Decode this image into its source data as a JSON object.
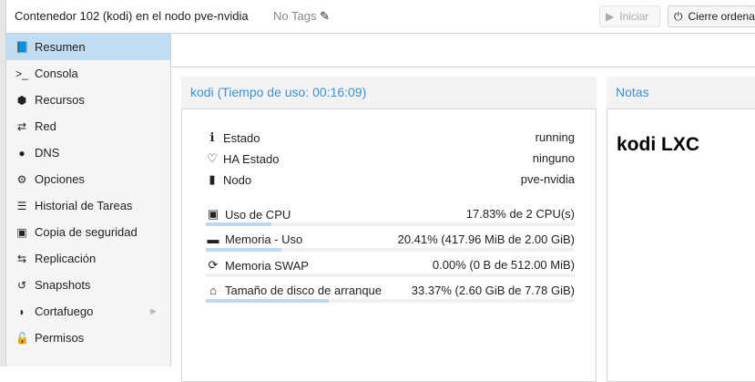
{
  "header": {
    "title": "Contenedor 102 (kodi) en el nodo pve-nvidia",
    "tags": "No Tags",
    "start_label": "Iniciar",
    "shutdown_label": "Cierre ordena"
  },
  "sidebar": {
    "items": [
      {
        "label": "Resumen",
        "icon": "book-icon",
        "glyph": "📘"
      },
      {
        "label": "Consola",
        "icon": "terminal-icon",
        "glyph": ">_"
      },
      {
        "label": "Recursos",
        "icon": "cube-icon",
        "glyph": "⬢"
      },
      {
        "label": "Red",
        "icon": "exchange-icon",
        "glyph": "⇄"
      },
      {
        "label": "DNS",
        "icon": "globe-icon",
        "glyph": "●"
      },
      {
        "label": "Opciones",
        "icon": "gear-icon",
        "glyph": "⚙"
      },
      {
        "label": "Historial de Tareas",
        "icon": "list-icon",
        "glyph": "☰"
      },
      {
        "label": "Copia de seguridad",
        "icon": "floppy-icon",
        "glyph": "▣"
      },
      {
        "label": "Replicación",
        "icon": "retweet-icon",
        "glyph": "⇆"
      },
      {
        "label": "Snapshots",
        "icon": "history-icon",
        "glyph": "↺"
      },
      {
        "label": "Cortafuego",
        "icon": "shield-icon",
        "glyph": "◗"
      },
      {
        "label": "Permisos",
        "icon": "unlock-icon",
        "glyph": "🔓"
      }
    ]
  },
  "status": {
    "title": "kodi (Tiempo de uso: 00:16:09)",
    "info": [
      {
        "label": "Estado",
        "value": "running",
        "glyph": "ℹ",
        "icon": "info-icon"
      },
      {
        "label": "HA Estado",
        "value": "ninguno",
        "glyph": "♡",
        "icon": "heartbeat-icon"
      },
      {
        "label": "Nodo",
        "value": "pve-nvidia",
        "glyph": "▮",
        "icon": "building-icon"
      }
    ],
    "usage": [
      {
        "label": "Uso de CPU",
        "value": "17.83% de 2 CPU(s)",
        "percent": 17.83,
        "glyph": "▣",
        "icon": "cpu-icon"
      },
      {
        "label": "Memoria - Uso",
        "value": "20.41% (417.96 MiB de 2.00 GiB)",
        "percent": 20.41,
        "glyph": "▬",
        "icon": "memory-icon"
      },
      {
        "label": "Memoria SWAP",
        "value": "0.00% (0 B de 512.00 MiB)",
        "percent": 0,
        "glyph": "⟳",
        "icon": "refresh-icon"
      },
      {
        "label": "Tamaño de disco de arranque",
        "value": "33.37% (2.60 GiB de 7.78 GiB)",
        "percent": 33.37,
        "glyph": "⌂",
        "icon": "hdd-icon"
      }
    ]
  },
  "notes": {
    "title": "Notas",
    "content": "kodi LXC"
  }
}
